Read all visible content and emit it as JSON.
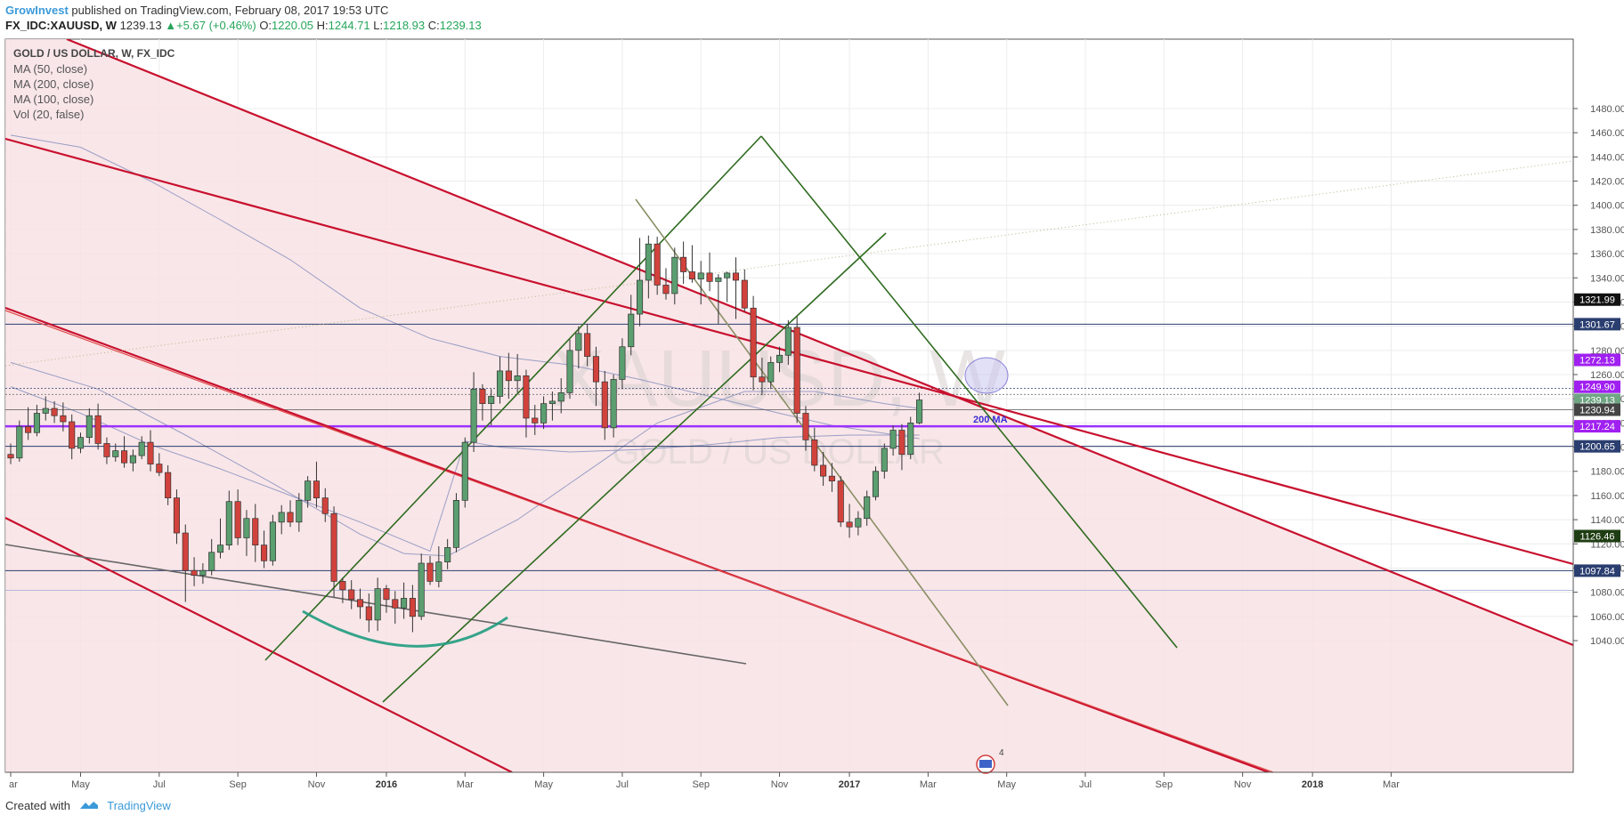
{
  "header": {
    "publisher": "GrowInvest",
    "published_text": "published on TradingView.com, February 08, 2017 19:53 UTC",
    "symbol": "FX_IDC:XAUUSD, W",
    "last": "1239.13",
    "change": "▲+5.67 (+0.46%)",
    "o_label": "O:",
    "o_value": "1220.05",
    "h_label": "H:",
    "h_value": "1244.71",
    "l_label": "L:",
    "l_value": "1218.93",
    "c_label": "C:",
    "c_value": "1239.13"
  },
  "legend": {
    "title": "GOLD / US DOLLAR, W, FX_IDC",
    "items": [
      "MA (50, close)",
      "MA (200, close)",
      "MA (100, close)",
      "Vol (20, false)"
    ]
  },
  "watermark": {
    "main": "XAUUSD, W",
    "sub": "GOLD / US DOLLAR"
  },
  "annotation": {
    "ma_label": "200 MA",
    "event_count": "4"
  },
  "footer": {
    "created_with": "Created with",
    "brand": "TradingView"
  },
  "colors": {
    "bull": "#5b9e70",
    "bear": "#d2423c",
    "channel_red": "#c8102e",
    "fill_pink": "#f8e2e4",
    "green_line": "#2e6b1f",
    "purple": "#9b30ff",
    "navy": "#2b3e70",
    "ma_line": "#8892c0",
    "teal_arc": "#1f9c80"
  },
  "chart_data": {
    "type": "candlestick",
    "y_axis": {
      "ticks": [
        1040,
        1060,
        1080,
        1100,
        1120,
        1140,
        1160,
        1180,
        1200,
        1220,
        1240,
        1260,
        1280,
        1300,
        1320,
        1340,
        1360,
        1380,
        1400,
        1420,
        1440,
        1460,
        1480
      ],
      "tick_labels": [
        "1040.00",
        "1060.00",
        "1080.00",
        "1100.00",
        "1120.00",
        "1140.00",
        "1160.00",
        "1180.00",
        "1200.00",
        "1220.00",
        "1240.00",
        "1260.00",
        "1280.00",
        "1300.00",
        "1320.00",
        "1340.00",
        "1360.00",
        "1380.00",
        "1400.00",
        "1420.00",
        "1440.00",
        "1460.00",
        "1480.00"
      ],
      "range": [
        1024,
        1494
      ]
    },
    "x_axis": {
      "labels": [
        "ar",
        "May",
        "Jul",
        "Sep",
        "Nov",
        "2016",
        "Mar",
        "May",
        "Jul",
        "Sep",
        "Nov",
        "2017",
        "Mar",
        "May",
        "Jul",
        "Sep",
        "Nov",
        "2018",
        "Mar"
      ],
      "bold_labels": [
        "2016",
        "2017",
        "2018"
      ],
      "label_week_index": [
        0,
        8,
        17,
        26,
        35,
        43,
        52,
        61,
        70,
        79,
        88,
        96,
        105,
        114,
        123,
        132,
        141,
        149,
        158
      ]
    },
    "price_markers": [
      {
        "value": "1321.99",
        "color": "#111111"
      },
      {
        "value": "1301.67",
        "color": "#2b3e70"
      },
      {
        "value": "1272.13",
        "color": "#a020f0"
      },
      {
        "value": "1249.90",
        "color": "#a020f0"
      },
      {
        "value": "1239.13",
        "color": "#6fa583"
      },
      {
        "value": "1230.94",
        "color": "#444444"
      },
      {
        "value": "1217.24",
        "color": "#a020f0"
      },
      {
        "value": "1200.65",
        "color": "#2b3e70"
      },
      {
        "value": "1126.46",
        "color": "#1e3d12"
      },
      {
        "value": "1097.84",
        "color": "#2b3e70"
      }
    ],
    "candles": [
      [
        1194,
        1203,
        1186,
        1191
      ],
      [
        1191,
        1222,
        1188,
        1217
      ],
      [
        1217,
        1233,
        1206,
        1212
      ],
      [
        1212,
        1235,
        1209,
        1228
      ],
      [
        1228,
        1242,
        1222,
        1232
      ],
      [
        1232,
        1238,
        1220,
        1226
      ],
      [
        1226,
        1237,
        1213,
        1221
      ],
      [
        1221,
        1227,
        1190,
        1199
      ],
      [
        1199,
        1212,
        1195,
        1208
      ],
      [
        1208,
        1232,
        1203,
        1226
      ],
      [
        1226,
        1236,
        1198,
        1203
      ],
      [
        1203,
        1208,
        1186,
        1192
      ],
      [
        1192,
        1203,
        1188,
        1197
      ],
      [
        1197,
        1209,
        1183,
        1187
      ],
      [
        1187,
        1198,
        1180,
        1193
      ],
      [
        1193,
        1209,
        1190,
        1204
      ],
      [
        1204,
        1214,
        1180,
        1186
      ],
      [
        1186,
        1195,
        1176,
        1179
      ],
      [
        1179,
        1185,
        1152,
        1158
      ],
      [
        1158,
        1165,
        1120,
        1129
      ],
      [
        1129,
        1136,
        1072,
        1098
      ],
      [
        1098,
        1109,
        1085,
        1094
      ],
      [
        1094,
        1104,
        1087,
        1098
      ],
      [
        1098,
        1124,
        1094,
        1113
      ],
      [
        1113,
        1141,
        1108,
        1119
      ],
      [
        1119,
        1164,
        1115,
        1155
      ],
      [
        1155,
        1165,
        1119,
        1125
      ],
      [
        1125,
        1148,
        1110,
        1141
      ],
      [
        1141,
        1153,
        1105,
        1119
      ],
      [
        1119,
        1131,
        1100,
        1106
      ],
      [
        1106,
        1144,
        1102,
        1138
      ],
      [
        1138,
        1152,
        1128,
        1146
      ],
      [
        1146,
        1156,
        1134,
        1138
      ],
      [
        1138,
        1162,
        1130,
        1156
      ],
      [
        1156,
        1176,
        1150,
        1172
      ],
      [
        1172,
        1188,
        1150,
        1158
      ],
      [
        1158,
        1166,
        1138,
        1145
      ],
      [
        1145,
        1151,
        1076,
        1089
      ],
      [
        1089,
        1092,
        1071,
        1082
      ],
      [
        1082,
        1090,
        1066,
        1074
      ],
      [
        1074,
        1083,
        1058,
        1068
      ],
      [
        1068,
        1079,
        1047,
        1057
      ],
      [
        1057,
        1092,
        1048,
        1083
      ],
      [
        1083,
        1086,
        1063,
        1074
      ],
      [
        1074,
        1081,
        1054,
        1067
      ],
      [
        1067,
        1088,
        1058,
        1075
      ],
      [
        1075,
        1086,
        1047,
        1060
      ],
      [
        1060,
        1112,
        1057,
        1104
      ],
      [
        1104,
        1110,
        1086,
        1089
      ],
      [
        1089,
        1118,
        1084,
        1105
      ],
      [
        1105,
        1124,
        1099,
        1117
      ],
      [
        1117,
        1162,
        1113,
        1156
      ],
      [
        1156,
        1208,
        1150,
        1204
      ],
      [
        1204,
        1262,
        1196,
        1248
      ],
      [
        1248,
        1252,
        1222,
        1236
      ],
      [
        1236,
        1248,
        1218,
        1242
      ],
      [
        1242,
        1275,
        1236,
        1263
      ],
      [
        1263,
        1278,
        1240,
        1255
      ],
      [
        1255,
        1277,
        1245,
        1259
      ],
      [
        1259,
        1264,
        1208,
        1224
      ],
      [
        1224,
        1235,
        1210,
        1220
      ],
      [
        1220,
        1242,
        1215,
        1236
      ],
      [
        1236,
        1246,
        1222,
        1238
      ],
      [
        1238,
        1257,
        1228,
        1245
      ],
      [
        1245,
        1289,
        1240,
        1280
      ],
      [
        1280,
        1300,
        1265,
        1294
      ],
      [
        1294,
        1302,
        1267,
        1275
      ],
      [
        1275,
        1283,
        1234,
        1254
      ],
      [
        1254,
        1263,
        1206,
        1216
      ],
      [
        1216,
        1260,
        1208,
        1256
      ],
      [
        1256,
        1290,
        1248,
        1283
      ],
      [
        1283,
        1326,
        1276,
        1310
      ],
      [
        1310,
        1373,
        1300,
        1338
      ],
      [
        1338,
        1375,
        1323,
        1368
      ],
      [
        1368,
        1374,
        1326,
        1334
      ],
      [
        1334,
        1348,
        1322,
        1327
      ],
      [
        1327,
        1365,
        1318,
        1357
      ],
      [
        1357,
        1370,
        1335,
        1345
      ],
      [
        1345,
        1367,
        1336,
        1339
      ],
      [
        1339,
        1354,
        1318,
        1344
      ],
      [
        1344,
        1361,
        1329,
        1337
      ],
      [
        1337,
        1343,
        1302,
        1340
      ],
      [
        1340,
        1345,
        1320,
        1344
      ],
      [
        1344,
        1357,
        1306,
        1338
      ],
      [
        1338,
        1347,
        1312,
        1315
      ],
      [
        1315,
        1325,
        1247,
        1258
      ],
      [
        1258,
        1274,
        1243,
        1254
      ],
      [
        1254,
        1275,
        1248,
        1270
      ],
      [
        1270,
        1283,
        1262,
        1276
      ],
      [
        1276,
        1305,
        1268,
        1299
      ],
      [
        1299,
        1308,
        1220,
        1228
      ],
      [
        1228,
        1234,
        1197,
        1206
      ],
      [
        1206,
        1216,
        1180,
        1185
      ],
      [
        1185,
        1196,
        1168,
        1176
      ],
      [
        1176,
        1187,
        1163,
        1172
      ],
      [
        1172,
        1176,
        1134,
        1138
      ],
      [
        1138,
        1153,
        1125,
        1134
      ],
      [
        1134,
        1147,
        1127,
        1141
      ],
      [
        1141,
        1164,
        1135,
        1159
      ],
      [
        1159,
        1184,
        1156,
        1180
      ],
      [
        1180,
        1203,
        1174,
        1199
      ],
      [
        1199,
        1218,
        1193,
        1214
      ],
      [
        1214,
        1219,
        1181,
        1194
      ],
      [
        1194,
        1225,
        1190,
        1220
      ],
      [
        1220,
        1245,
        1219,
        1239
      ]
    ],
    "moving_averages": [
      {
        "name": "MA (50, close)",
        "points": [
          [
            0,
            1270
          ],
          [
            10,
            1248
          ],
          [
            20,
            1210
          ],
          [
            30,
            1170
          ],
          [
            40,
            1128
          ],
          [
            45,
            1112
          ],
          [
            50,
            1110
          ],
          [
            58,
            1140
          ],
          [
            66,
            1180
          ],
          [
            74,
            1220
          ],
          [
            84,
            1246
          ],
          [
            92,
            1246
          ],
          [
            100,
            1236
          ],
          [
            104,
            1232
          ]
        ]
      },
      {
        "name": "MA (200, close)",
        "points": [
          [
            0,
            1458
          ],
          [
            8,
            1448
          ],
          [
            16,
            1420
          ],
          [
            24,
            1388
          ],
          [
            32,
            1355
          ],
          [
            40,
            1315
          ],
          [
            48,
            1290
          ],
          [
            56,
            1275
          ],
          [
            64,
            1268
          ],
          [
            72,
            1256
          ],
          [
            80,
            1242
          ],
          [
            88,
            1228
          ],
          [
            94,
            1218
          ],
          [
            104,
            1207
          ]
        ]
      },
      {
        "name": "MA (100, close)",
        "points": [
          [
            0,
            1250
          ],
          [
            8,
            1228
          ],
          [
            16,
            1202
          ],
          [
            24,
            1182
          ],
          [
            32,
            1160
          ],
          [
            40,
            1138
          ],
          [
            48,
            1114
          ],
          [
            52,
            1205
          ],
          [
            56,
            1200
          ],
          [
            64,
            1196
          ],
          [
            72,
            1198
          ],
          [
            80,
            1202
          ],
          [
            88,
            1208
          ],
          [
            96,
            1210
          ],
          [
            104,
            1210
          ]
        ]
      }
    ],
    "series_names": [
      "MA (50, close)",
      "MA (200, close)",
      "MA (100, close)",
      "Vol (20, false)"
    ]
  }
}
